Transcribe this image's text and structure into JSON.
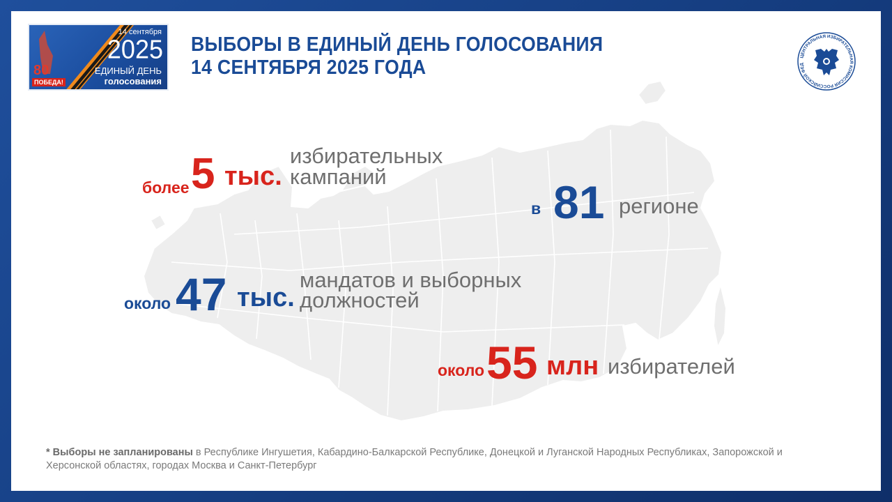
{
  "badge": {
    "date": "14 сентября",
    "year": "2025",
    "line1": "ЕДИНЫЙ ДЕНЬ",
    "line2": "голосования",
    "victory_number": "80",
    "victory_label": "ПОБЕДА!"
  },
  "title": {
    "line1": "ВЫБОРЫ В ЕДИНЫЙ ДЕНЬ ГОЛОСОВАНИЯ",
    "line2": "14 СЕНТЯБРЯ 2025 ГОДА"
  },
  "emblem": {
    "icon": "cik-emblem-icon",
    "text": "ЦЕНТРАЛЬНАЯ ИЗБИРАТЕЛЬНАЯ КОМИССИЯ РОССИЙСКОЙ ФЕДЕРАЦИИ"
  },
  "stats": {
    "campaigns": {
      "prefix": "более",
      "number": "5",
      "unit": "тыс.",
      "desc_line1": "избирательных",
      "desc_line2": "кампаний"
    },
    "regions": {
      "prefix": "в",
      "number": "81",
      "desc": "регионе"
    },
    "mandates": {
      "prefix": "около",
      "number": "47",
      "unit": "тыс.",
      "desc_line1": "мандатов и выборных",
      "desc_line2": "должностей"
    },
    "voters": {
      "prefix": "около",
      "number": "55",
      "unit": "млн",
      "desc": "избирателей"
    }
  },
  "footnote": {
    "bold": "* Выборы не запланированы",
    "text": " в Республике Ингушетия, Кабардино-Балкарской Республике, Донецкой и Луганской Народных Республиках, Запорожской и Херсонской областях, городах Москва и Санкт-Петербург"
  },
  "colors": {
    "accent_red": "#d8241c",
    "accent_blue": "#1a4b96",
    "frame_blue": "#1f4f9c",
    "map_fill": "#eeeeee"
  }
}
